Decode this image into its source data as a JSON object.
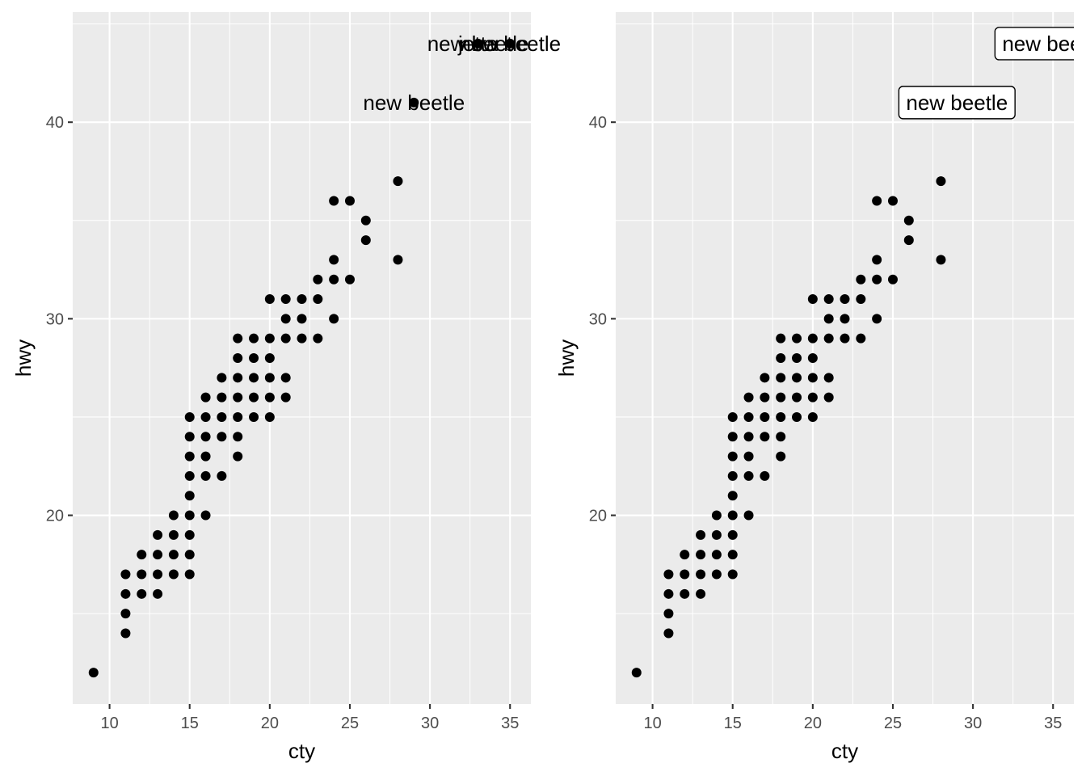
{
  "chart_data": [
    {
      "type": "scatter",
      "title": "",
      "xlabel": "cty",
      "ylabel": "hwy",
      "xlim": [
        7.7,
        36.3
      ],
      "ylim": [
        10.4,
        45.6
      ],
      "xticks": [
        10,
        15,
        20,
        25,
        30,
        35
      ],
      "yticks": [
        20,
        30,
        40
      ],
      "grid": true,
      "label_style": "text",
      "points": [
        [
          9,
          12
        ],
        [
          11,
          14
        ],
        [
          11,
          15
        ],
        [
          11,
          16
        ],
        [
          11,
          17
        ],
        [
          12,
          16
        ],
        [
          12,
          17
        ],
        [
          12,
          18
        ],
        [
          13,
          16
        ],
        [
          13,
          17
        ],
        [
          13,
          18
        ],
        [
          13,
          19
        ],
        [
          14,
          17
        ],
        [
          14,
          18
        ],
        [
          14,
          19
        ],
        [
          14,
          20
        ],
        [
          15,
          17
        ],
        [
          15,
          18
        ],
        [
          15,
          19
        ],
        [
          15,
          20
        ],
        [
          15,
          21
        ],
        [
          15,
          22
        ],
        [
          15,
          23
        ],
        [
          15,
          24
        ],
        [
          15,
          25
        ],
        [
          16,
          20
        ],
        [
          16,
          22
        ],
        [
          16,
          23
        ],
        [
          16,
          24
        ],
        [
          16,
          25
        ],
        [
          16,
          26
        ],
        [
          17,
          22
        ],
        [
          17,
          24
        ],
        [
          17,
          25
        ],
        [
          17,
          26
        ],
        [
          17,
          27
        ],
        [
          18,
          23
        ],
        [
          18,
          24
        ],
        [
          18,
          25
        ],
        [
          18,
          26
        ],
        [
          18,
          27
        ],
        [
          18,
          28
        ],
        [
          18,
          29
        ],
        [
          19,
          25
        ],
        [
          19,
          26
        ],
        [
          19,
          27
        ],
        [
          19,
          28
        ],
        [
          19,
          29
        ],
        [
          20,
          25
        ],
        [
          20,
          26
        ],
        [
          20,
          27
        ],
        [
          20,
          28
        ],
        [
          20,
          29
        ],
        [
          20,
          31
        ],
        [
          21,
          26
        ],
        [
          21,
          27
        ],
        [
          21,
          29
        ],
        [
          21,
          30
        ],
        [
          21,
          31
        ],
        [
          22,
          29
        ],
        [
          22,
          30
        ],
        [
          22,
          31
        ],
        [
          23,
          29
        ],
        [
          23,
          31
        ],
        [
          23,
          32
        ],
        [
          24,
          30
        ],
        [
          24,
          32
        ],
        [
          24,
          33
        ],
        [
          24,
          36
        ],
        [
          25,
          32
        ],
        [
          25,
          36
        ],
        [
          26,
          34
        ],
        [
          26,
          35
        ],
        [
          28,
          33
        ],
        [
          28,
          37
        ],
        [
          29,
          41
        ],
        [
          33,
          44
        ],
        [
          35,
          44
        ]
      ],
      "labels": [
        {
          "x": 29,
          "y": 41,
          "text": "new beetle"
        },
        {
          "x": 33,
          "y": 44,
          "text": "jetta"
        },
        {
          "x": 33,
          "y": 44,
          "text": "new beetle"
        },
        {
          "x": 35,
          "y": 44,
          "text": "new beetle"
        }
      ]
    },
    {
      "type": "scatter",
      "title": "",
      "xlabel": "cty",
      "ylabel": "hwy",
      "xlim": [
        7.7,
        36.3
      ],
      "ylim": [
        10.4,
        45.6
      ],
      "xticks": [
        10,
        15,
        20,
        25,
        30,
        35
      ],
      "yticks": [
        20,
        30,
        40
      ],
      "grid": true,
      "label_style": "boxed",
      "points": [
        [
          9,
          12
        ],
        [
          11,
          14
        ],
        [
          11,
          15
        ],
        [
          11,
          16
        ],
        [
          11,
          17
        ],
        [
          12,
          16
        ],
        [
          12,
          17
        ],
        [
          12,
          18
        ],
        [
          13,
          16
        ],
        [
          13,
          17
        ],
        [
          13,
          18
        ],
        [
          13,
          19
        ],
        [
          14,
          17
        ],
        [
          14,
          18
        ],
        [
          14,
          19
        ],
        [
          14,
          20
        ],
        [
          15,
          17
        ],
        [
          15,
          18
        ],
        [
          15,
          19
        ],
        [
          15,
          20
        ],
        [
          15,
          21
        ],
        [
          15,
          22
        ],
        [
          15,
          23
        ],
        [
          15,
          24
        ],
        [
          15,
          25
        ],
        [
          16,
          20
        ],
        [
          16,
          22
        ],
        [
          16,
          23
        ],
        [
          16,
          24
        ],
        [
          16,
          25
        ],
        [
          16,
          26
        ],
        [
          17,
          22
        ],
        [
          17,
          24
        ],
        [
          17,
          25
        ],
        [
          17,
          26
        ],
        [
          17,
          27
        ],
        [
          18,
          23
        ],
        [
          18,
          24
        ],
        [
          18,
          25
        ],
        [
          18,
          26
        ],
        [
          18,
          27
        ],
        [
          18,
          28
        ],
        [
          18,
          29
        ],
        [
          19,
          25
        ],
        [
          19,
          26
        ],
        [
          19,
          27
        ],
        [
          19,
          28
        ],
        [
          19,
          29
        ],
        [
          20,
          25
        ],
        [
          20,
          26
        ],
        [
          20,
          27
        ],
        [
          20,
          28
        ],
        [
          20,
          29
        ],
        [
          20,
          31
        ],
        [
          21,
          26
        ],
        [
          21,
          27
        ],
        [
          21,
          29
        ],
        [
          21,
          30
        ],
        [
          21,
          31
        ],
        [
          22,
          29
        ],
        [
          22,
          30
        ],
        [
          22,
          31
        ],
        [
          23,
          29
        ],
        [
          23,
          31
        ],
        [
          23,
          32
        ],
        [
          24,
          30
        ],
        [
          24,
          32
        ],
        [
          24,
          33
        ],
        [
          24,
          36
        ],
        [
          25,
          32
        ],
        [
          25,
          36
        ],
        [
          26,
          34
        ],
        [
          26,
          35
        ],
        [
          28,
          33
        ],
        [
          28,
          37
        ]
      ],
      "labels": [
        {
          "x": 29,
          "y": 41,
          "text": "new beetle"
        },
        {
          "x": 35,
          "y": 44,
          "text": "new beetle"
        }
      ]
    }
  ]
}
